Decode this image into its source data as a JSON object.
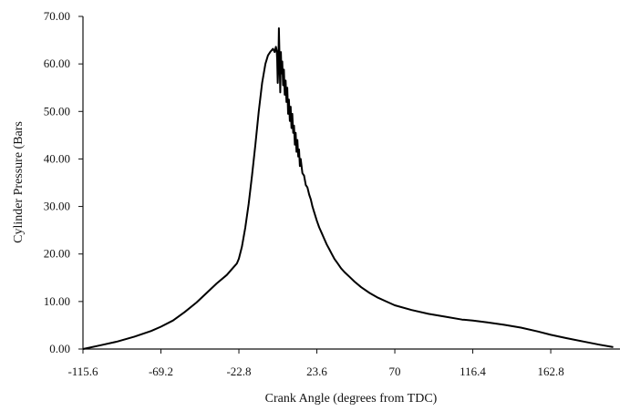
{
  "chart_data": {
    "type": "line",
    "title": "",
    "xlabel": "Crank Angle (degrees from TDC)",
    "ylabel": "Cylinder Pressure (Bars",
    "xlim": [
      -115.6,
      204
    ],
    "ylim": [
      0,
      70
    ],
    "xticks": [
      -115.6,
      -69.2,
      -22.8,
      23.6,
      70,
      116.4,
      162.8
    ],
    "xtick_labels": [
      "-115.6",
      "-69.2",
      "-22.8",
      "23.6",
      "70",
      "116.4",
      "162.8"
    ],
    "yticks": [
      0,
      10,
      20,
      30,
      40,
      50,
      60,
      70
    ],
    "ytick_labels": [
      "0.00",
      "10.00",
      "20.00",
      "30.00",
      "40.00",
      "50.00",
      "60.00",
      "70.00"
    ],
    "grid": false,
    "legend": "none",
    "series": [
      {
        "color": "#000000",
        "x": [
          -115.6,
          -105,
          -95,
          -85,
          -75,
          -69.2,
          -62,
          -55,
          -48,
          -42,
          -36,
          -30,
          -26,
          -24,
          -22.8,
          -21,
          -19,
          -17,
          -15,
          -13,
          -11,
          -9,
          -7,
          -5.5,
          -4,
          -2.5,
          -1.5,
          -0.8,
          -0.3,
          0,
          0.3,
          0.7,
          1.0,
          1.4,
          1.8,
          2.2,
          2.6,
          3.0,
          3.5,
          4.0,
          4.5,
          5.0,
          5.5,
          6.0,
          6.5,
          7.0,
          7.5,
          8.0,
          8.5,
          9.0,
          9.5,
          10.0,
          10.5,
          11.0,
          11.5,
          12.0,
          12.5,
          13.0,
          13.5,
          14.0,
          15.0,
          16.0,
          17.0,
          18.0,
          19.0,
          20.0,
          21.0,
          22.0,
          23.6,
          25,
          26.5,
          28,
          29.5,
          31,
          32.5,
          34,
          36,
          38,
          40,
          43,
          46,
          50,
          55,
          60,
          65,
          70,
          80,
          90,
          100,
          110,
          116.4,
          125,
          135,
          145,
          155,
          162.8,
          172,
          182,
          192,
          200
        ],
        "y": [
          0.0,
          0.8,
          1.6,
          2.6,
          3.8,
          4.7,
          6.0,
          7.8,
          9.8,
          11.8,
          13.8,
          15.6,
          17.2,
          18.0,
          19.0,
          21.5,
          25.5,
          30.5,
          36.5,
          43.0,
          50.0,
          56.0,
          60.0,
          61.8,
          62.6,
          63.2,
          62.5,
          63.6,
          62.8,
          61.0,
          56.0,
          59.5,
          67.5,
          61.5,
          54.0,
          62.5,
          58.0,
          60.5,
          55.5,
          58.8,
          53.5,
          56.5,
          52.0,
          55.0,
          49.5,
          52.5,
          48.0,
          51.0,
          46.5,
          49.5,
          45.5,
          47.0,
          43.0,
          45.5,
          41.5,
          44.0,
          40.5,
          42.0,
          38.5,
          40.0,
          37.0,
          36.5,
          34.5,
          34.0,
          32.5,
          31.5,
          30.0,
          28.8,
          27.0,
          25.6,
          24.4,
          23.2,
          22.0,
          21.0,
          20.0,
          19.0,
          18.0,
          17.0,
          16.2,
          15.2,
          14.2,
          13.0,
          11.8,
          10.8,
          10.0,
          9.2,
          8.2,
          7.4,
          6.8,
          6.2,
          6.0,
          5.6,
          5.1,
          4.5,
          3.7,
          3.0,
          2.3,
          1.6,
          0.9,
          0.4
        ]
      }
    ]
  }
}
